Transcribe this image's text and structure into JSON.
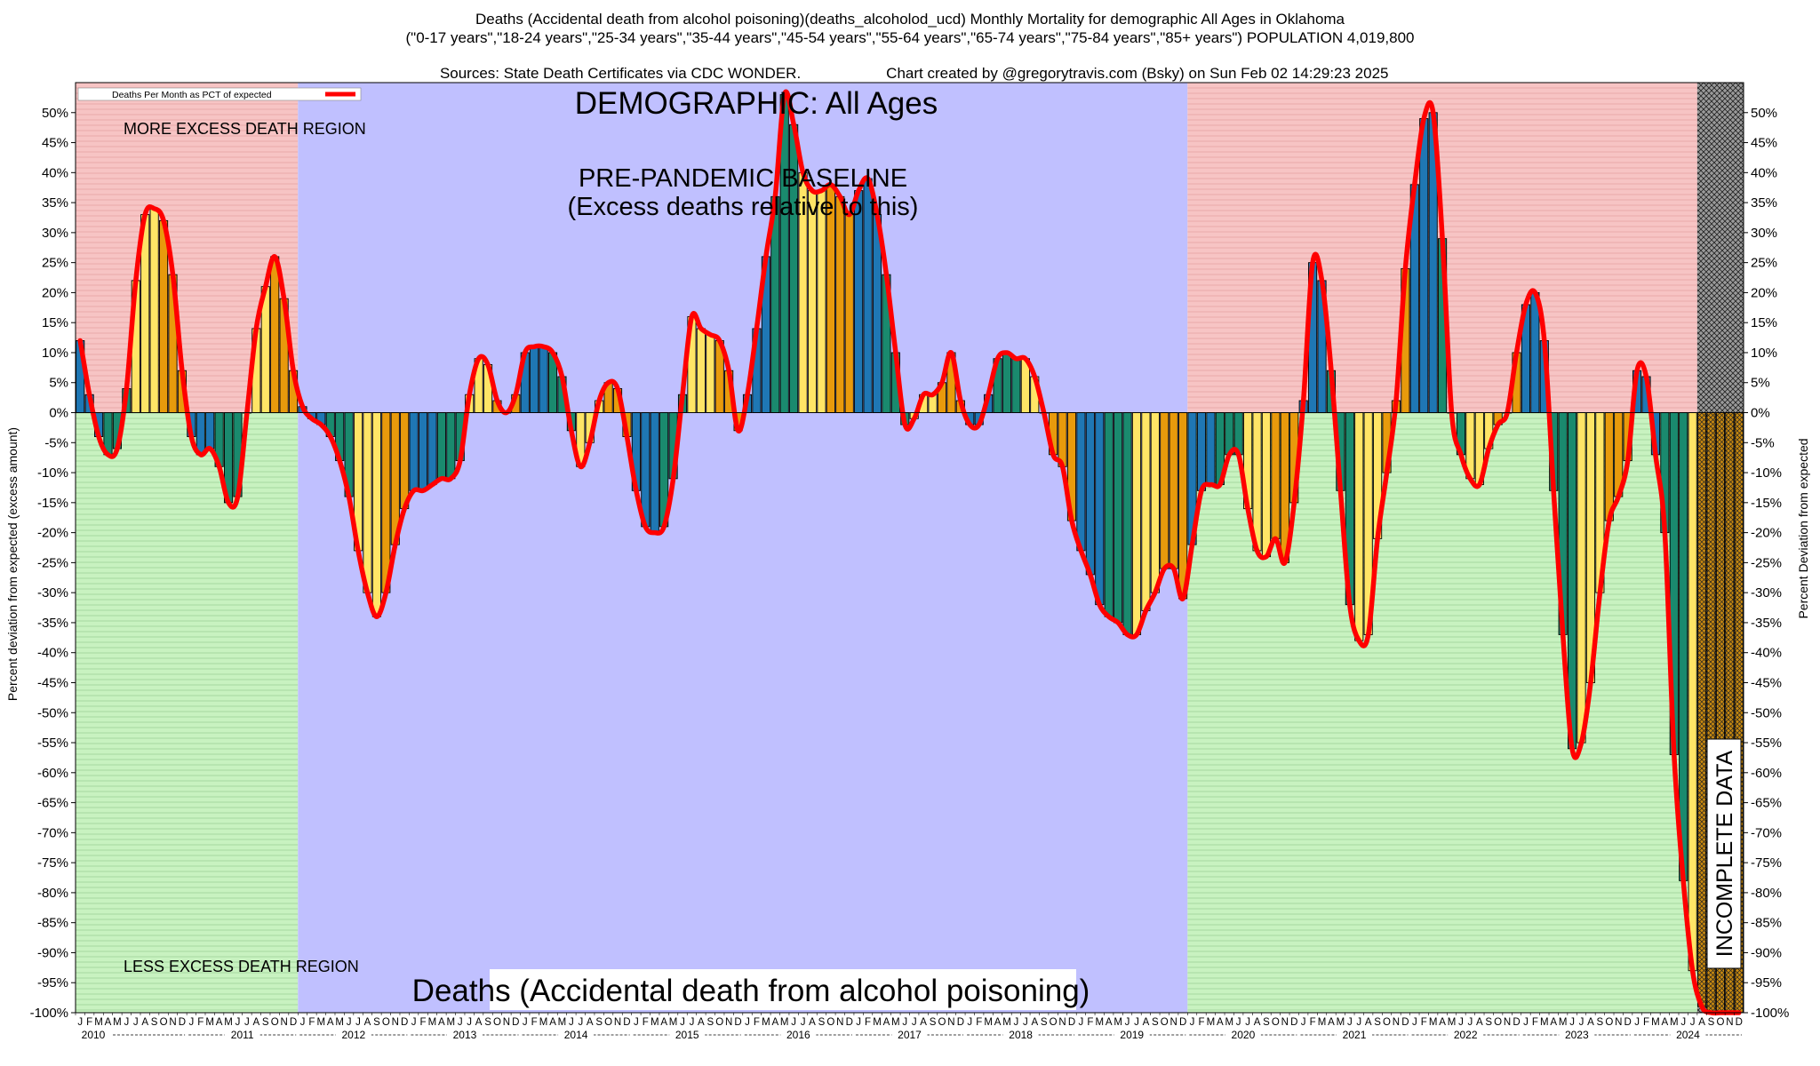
{
  "header": {
    "line1": "Deaths (Accidental death from alcohol poisoning)(deaths_alcoholod_ucd) Monthly Mortality for demographic All Ages in Oklahoma",
    "line2": "(\"0-17 years\",\"18-24 years\",\"25-34 years\",\"35-44 years\",\"45-54 years\",\"55-64 years\",\"65-74 years\",\"75-84 years\",\"85+ years\") POPULATION 4,019,800",
    "line3_left": "Sources: State Death Certificates via CDC WONDER.",
    "line3_right": "Chart created by @gregorytravis.com (Bsky) on Sun Feb 02 14:29:23 2025"
  },
  "labels": {
    "demographic": "DEMOGRAPHIC: All Ages",
    "baseline_line1": "PRE-PANDEMIC BASELINE",
    "baseline_line2": "(Excess deaths relative to this)",
    "more_excess": "MORE EXCESS DEATH REGION",
    "less_excess": "LESS EXCESS DEATH REGION",
    "bottom_title": "Deaths (Accidental death from alcohol poisoning)",
    "incomplete": "INCOMPLETE DATA"
  },
  "colors": {
    "excess_region": "#f7c4c4",
    "less_region": "#c8f2c0",
    "baseline_region": "#c0c0ff",
    "line": "#ff0000",
    "bar_palette": [
      "#1f77b4",
      "#1a8a6e",
      "#ffe566",
      "#e89a0c"
    ]
  },
  "chart_data": {
    "type": "bar",
    "title": "Deaths (Accidental death from alcohol poisoning) Monthly Mortality - All Ages, Oklahoma",
    "ylabel_left": "Percent deviation from expected (excess amount)",
    "ylabel_right": "Percent Deviation from expected",
    "ylim": [
      -100,
      55
    ],
    "y_ticks": [
      50,
      45,
      40,
      35,
      30,
      25,
      20,
      15,
      10,
      5,
      0,
      -5,
      -10,
      -15,
      -20,
      -25,
      -30,
      -35,
      -40,
      -45,
      -50,
      -55,
      -60,
      -65,
      -70,
      -75,
      -80,
      -85,
      -90,
      -95,
      -100
    ],
    "y_tick_labels": [
      "50%",
      "45%",
      "40%",
      "35%",
      "30%",
      "25%",
      "20%",
      "15%",
      "10%",
      "5%",
      "0%",
      "-5%",
      "-10%",
      "-15%",
      "-20%",
      "-25%",
      "-30%",
      "-35%",
      "-40%",
      "-45%",
      "-50%",
      "-55%",
      "-60%",
      "-65%",
      "-70%",
      "-75%",
      "-80%",
      "-85%",
      "-90%",
      "-95%",
      "-100%"
    ],
    "legend": "Deaths Per Month as PCT of expected",
    "month_letters": [
      "J",
      "F",
      "M",
      "A",
      "M",
      "J",
      "J",
      "A",
      "S",
      "O",
      "N",
      "D"
    ],
    "years": [
      "2010",
      "2011",
      "2012",
      "2013",
      "2014",
      "2015",
      "2016",
      "2017",
      "2018",
      "2019",
      "2020",
      "2021",
      "2022",
      "2023",
      "2024"
    ],
    "start": "2010-01",
    "regions": [
      {
        "name": "more-excess-2010-2011",
        "from_month": 0,
        "to_month": 24,
        "kind": "excess"
      },
      {
        "name": "pre-pandemic-baseline",
        "from_month": 24,
        "to_month": 120,
        "kind": "baseline"
      },
      {
        "name": "more-excess-2020-2024",
        "from_month": 120,
        "to_month": 175,
        "kind": "excess"
      },
      {
        "name": "incomplete-data",
        "from_month": 175,
        "to_month": 180,
        "kind": "incomplete"
      }
    ],
    "values": [
      12,
      3,
      -4,
      -7,
      -6,
      4,
      22,
      33,
      34,
      32,
      23,
      7,
      -4,
      -7,
      -6,
      -9,
      -15,
      -14,
      0,
      14,
      21,
      26,
      19,
      7,
      1,
      -1,
      -2,
      -4,
      -8,
      -14,
      -23,
      -30,
      -34,
      -30,
      -22,
      -16,
      -13,
      -13,
      -12,
      -11,
      -11,
      -8,
      3,
      9,
      8,
      2,
      0,
      3,
      10,
      11,
      11,
      10,
      6,
      -3,
      -9,
      -5,
      2,
      5,
      4,
      -4,
      -13,
      -19,
      -20,
      -19,
      -11,
      3,
      16,
      14,
      13,
      12,
      7,
      -3,
      3,
      14,
      26,
      36,
      53,
      48,
      40,
      37,
      37,
      38,
      36,
      33,
      37,
      39,
      33,
      23,
      10,
      -2,
      -1,
      3,
      3,
      5,
      10,
      2,
      -2,
      -2,
      3,
      9,
      10,
      9,
      9,
      6,
      0,
      -7,
      -9,
      -18,
      -23,
      -27,
      -32,
      -34,
      -35,
      -37,
      -37,
      -33,
      -30,
      -26,
      -26,
      -31,
      -22,
      -13,
      -12,
      -12,
      -7,
      -7,
      -16,
      -23,
      -24,
      -21,
      -25,
      -15,
      2,
      25,
      22,
      7,
      -13,
      -32,
      -38,
      -37,
      -21,
      -10,
      2,
      24,
      38,
      49,
      50,
      29,
      0,
      -7,
      -11,
      -12,
      -6,
      -2,
      0,
      10,
      18,
      20,
      12,
      -13,
      -37,
      -56,
      -55,
      -45,
      -30,
      -18,
      -14,
      -8,
      7,
      6,
      -7,
      -20,
      -57,
      -78,
      -93,
      -99,
      -100,
      -100,
      -100,
      -100
    ]
  }
}
